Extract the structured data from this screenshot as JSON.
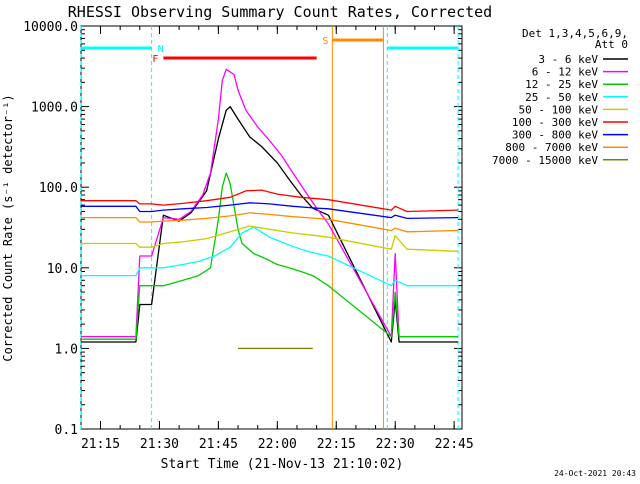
{
  "chart_data": {
    "type": "line",
    "title": "RHESSI Observing Summary Count Rates, Corrected",
    "xlabel": "Start Time (21-Nov-13 21:10:02)",
    "ylabel": "Corrected Count Rate (s⁻¹ detector⁻¹)",
    "y_scale": "log",
    "ylim": [
      0.1,
      10000
    ],
    "xlim": [
      "21:10:02",
      "22:47:00"
    ],
    "y_ticks": [
      "0.1",
      "1.0",
      "10.0",
      "100.0",
      "1000.0",
      "10000.0"
    ],
    "x_ticks": [
      "21:15",
      "21:30",
      "21:45",
      "22:00",
      "22:15",
      "22:30",
      "22:45"
    ],
    "legend_position": "top-right",
    "legend_header": [
      "Det 1,3,4,5,6,9,",
      "Att 0"
    ],
    "footer_date": "24-Oct-2021 20:43",
    "flags": [
      {
        "label": "N",
        "color": "#00ffff",
        "start": "21:10",
        "end": "21:28"
      },
      {
        "label": "N",
        "color": "#00ffff",
        "start": "22:28",
        "end": "22:46"
      },
      {
        "label": "F",
        "color": "#ff0000",
        "start": "21:31",
        "end": "22:10"
      },
      {
        "label": "S",
        "color": "#ff8c00",
        "start": "22:14",
        "end": "22:27"
      }
    ],
    "series": [
      {
        "name": "3 - 6 keV",
        "color": "#000000",
        "x": [
          "21:10",
          "21:24",
          "21:25",
          "21:28",
          "21:31",
          "21:35",
          "21:38",
          "21:42",
          "21:45",
          "21:47",
          "21:48",
          "21:50",
          "21:53",
          "21:56",
          "22:00",
          "22:03",
          "22:06",
          "22:09",
          "22:13",
          "22:29",
          "22:30",
          "22:31",
          "22:33",
          "22:46"
        ],
        "y": [
          1.2,
          1.2,
          3.5,
          3.5,
          45,
          38,
          48,
          90,
          400,
          900,
          1000,
          700,
          420,
          320,
          200,
          125,
          80,
          55,
          45,
          1.2,
          4,
          1.2,
          1.2,
          1.2
        ]
      },
      {
        "name": "6 - 12 keV",
        "color": "#ff00ff",
        "x": [
          "21:10",
          "21:24",
          "21:25",
          "21:28",
          "21:31",
          "21:35",
          "21:38",
          "21:41",
          "21:43",
          "21:45",
          "21:46",
          "21:47",
          "21:49",
          "21:50",
          "21:52",
          "21:55",
          "21:58",
          "22:01",
          "22:04",
          "22:07",
          "22:10",
          "22:13",
          "22:29",
          "22:30",
          "22:31",
          "22:32",
          "22:33",
          "22:46"
        ],
        "y": [
          1.4,
          1.4,
          14,
          14,
          42,
          40,
          50,
          80,
          150,
          700,
          2100,
          2900,
          2500,
          1600,
          900,
          560,
          380,
          250,
          150,
          90,
          55,
          35,
          1.4,
          15,
          1.4,
          1.4,
          1.4,
          1.4
        ]
      },
      {
        "name": "12 - 25 keV",
        "color": "#00cc00",
        "x": [
          "21:10",
          "21:24",
          "21:25",
          "21:28",
          "21:31",
          "21:36",
          "21:40",
          "21:43",
          "21:45",
          "21:46",
          "21:47",
          "21:48",
          "21:50",
          "21:51",
          "21:54",
          "21:57",
          "22:00",
          "22:03",
          "22:06",
          "22:09",
          "22:13",
          "22:29",
          "22:30",
          "22:31",
          "22:46"
        ],
        "y": [
          1.3,
          1.3,
          6,
          6,
          6,
          7,
          8,
          10,
          40,
          100,
          150,
          110,
          30,
          20,
          15,
          13,
          11,
          10,
          9,
          8,
          6,
          1.4,
          5,
          1.4,
          1.4
        ]
      },
      {
        "name": "25 - 50 keV",
        "color": "#00ffff",
        "x": [
          "21:10",
          "21:24",
          "21:25",
          "21:28",
          "21:31",
          "21:36",
          "21:40",
          "21:44",
          "21:48",
          "21:51",
          "21:54",
          "21:58",
          "22:02",
          "22:06",
          "22:10",
          "22:13",
          "22:29",
          "22:30",
          "22:33",
          "22:46"
        ],
        "y": [
          8,
          8,
          10,
          10,
          10,
          11,
          12,
          14,
          18,
          27,
          32,
          24,
          20,
          17,
          15,
          14,
          6,
          7,
          6,
          6
        ]
      },
      {
        "name": "50 - 100 keV",
        "color": "#cccc00",
        "x": [
          "21:10",
          "21:24",
          "21:25",
          "21:28",
          "21:31",
          "21:36",
          "21:42",
          "21:48",
          "21:53",
          "21:58",
          "22:04",
          "22:10",
          "22:13",
          "22:29",
          "22:30",
          "22:33",
          "22:46"
        ],
        "y": [
          20,
          20,
          18,
          18,
          20,
          21,
          23,
          28,
          33,
          30,
          27,
          25,
          24,
          17,
          25,
          17,
          16
        ]
      },
      {
        "name": "100 - 300 keV",
        "color": "#ff0000",
        "x": [
          "21:10",
          "21:24",
          "21:25",
          "21:28",
          "21:31",
          "21:36",
          "21:42",
          "21:48",
          "21:52",
          "21:56",
          "22:00",
          "22:06",
          "22:13",
          "22:29",
          "22:30",
          "22:33",
          "22:46"
        ],
        "y": [
          68,
          68,
          62,
          62,
          60,
          63,
          68,
          75,
          90,
          92,
          82,
          75,
          70,
          52,
          58,
          50,
          52
        ]
      },
      {
        "name": "300 - 800 keV",
        "color": "#0000ff",
        "x": [
          "21:10",
          "21:24",
          "21:25",
          "21:28",
          "21:31",
          "21:36",
          "21:42",
          "21:48",
          "21:53",
          "21:58",
          "22:04",
          "22:10",
          "22:13",
          "22:29",
          "22:30",
          "22:33",
          "22:46"
        ],
        "y": [
          58,
          58,
          50,
          50,
          52,
          54,
          56,
          60,
          64,
          62,
          58,
          55,
          54,
          42,
          45,
          41,
          42
        ]
      },
      {
        "name": "800 - 7000 keV",
        "color": "#ff8c00",
        "x": [
          "21:10",
          "21:24",
          "21:25",
          "21:28",
          "21:31",
          "21:36",
          "21:42",
          "21:48",
          "21:53",
          "21:58",
          "22:04",
          "22:10",
          "22:13",
          "22:29",
          "22:30",
          "22:33",
          "22:46"
        ],
        "y": [
          42,
          42,
          37,
          37,
          38,
          39,
          41,
          44,
          48,
          46,
          43,
          41,
          40,
          29,
          31,
          28,
          29
        ]
      },
      {
        "name": "7000 - 15000 keV",
        "color": "#808000",
        "x": [
          "21:50",
          "22:09"
        ],
        "y": [
          1.0,
          1.0
        ]
      }
    ]
  }
}
